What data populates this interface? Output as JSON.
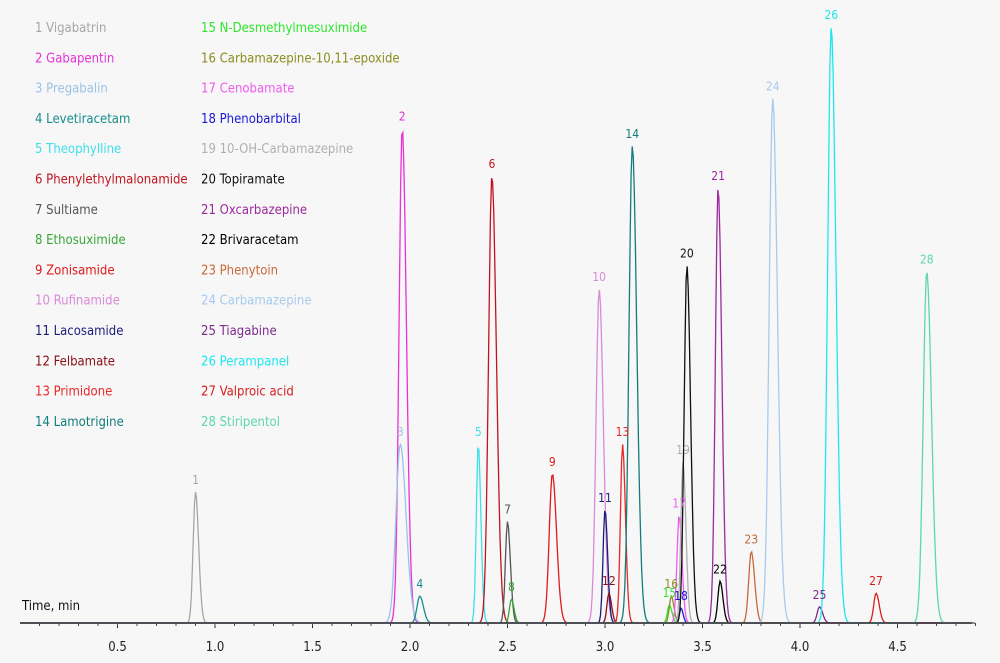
{
  "chart_data": {
    "type": "line",
    "xlabel": "Time, min",
    "xlim": [
      0,
      4.9
    ],
    "x_ticks": [
      "0.5",
      "1.0",
      "1.5",
      "2.0",
      "2.5",
      "3.0",
      "3.5",
      "4.0",
      "4.5"
    ],
    "legend": [
      {
        "num": "1",
        "name": "Vigabatrin",
        "color": "#a6a6a6"
      },
      {
        "num": "2",
        "name": "Gabapentin",
        "color": "#e632d6"
      },
      {
        "num": "3",
        "name": "Pregabalin",
        "color": "#9cc3e6"
      },
      {
        "num": "4",
        "name": "Levetiracetam",
        "color": "#1a8c8c"
      },
      {
        "num": "5",
        "name": "Theophylline",
        "color": "#3de0e8"
      },
      {
        "num": "6",
        "name": "Phenylethylmalonamide",
        "color": "#c0141e"
      },
      {
        "num": "7",
        "name": "Sultiame",
        "color": "#555555"
      },
      {
        "num": "8",
        "name": "Ethosuximide",
        "color": "#3aa63a"
      },
      {
        "num": "9",
        "name": "Zonisamide",
        "color": "#e01919"
      },
      {
        "num": "10",
        "name": "Rufinamide",
        "color": "#d98ad9"
      },
      {
        "num": "11",
        "name": "Lacosamide",
        "color": "#1c1c7a"
      },
      {
        "num": "12",
        "name": "Felbamate",
        "color": "#8a0f14"
      },
      {
        "num": "13",
        "name": "Primidone",
        "color": "#e82828"
      },
      {
        "num": "14",
        "name": "Lamotrigine",
        "color": "#117d7a"
      },
      {
        "num": "15",
        "name": "N-Desmethylmesuximide",
        "color": "#2fe62f"
      },
      {
        "num": "16",
        "name": "Carbamazepine-10,11-epoxide",
        "color": "#8c8c1e"
      },
      {
        "num": "17",
        "name": "Cenobamate",
        "color": "#f05cf0"
      },
      {
        "num": "18",
        "name": "Phenobarbital",
        "color": "#1a1ad6"
      },
      {
        "num": "19",
        "name": "10-OH-Carbamazepine",
        "color": "#b0b0b0"
      },
      {
        "num": "20",
        "name": "Topiramate",
        "color": "#111111"
      },
      {
        "num": "21",
        "name": "Oxcarbazepine",
        "color": "#9c2a9c"
      },
      {
        "num": "22",
        "name": "Brivaracetam",
        "color": "#000000"
      },
      {
        "num": "23",
        "name": "Phenytoin",
        "color": "#c8693a"
      },
      {
        "num": "24",
        "name": "Carbamazepine",
        "color": "#a6cbee"
      },
      {
        "num": "25",
        "name": "Tiagabine",
        "color": "#7d2a8c"
      },
      {
        "num": "26",
        "name": "Perampanel",
        "color": "#1ee6f0"
      },
      {
        "num": "27",
        "name": "Valproic acid",
        "color": "#d61e1e"
      },
      {
        "num": "28",
        "name": "Stiripentol",
        "color": "#5fd6b0"
      }
    ],
    "series": [
      {
        "num": "1",
        "rt": 0.9,
        "height": 0.22,
        "width": 0.012
      },
      {
        "num": "2",
        "rt": 1.96,
        "height": 0.83,
        "width": 0.016
      },
      {
        "num": "3",
        "rt": 1.95,
        "height": 0.3,
        "width": 0.022
      },
      {
        "num": "4",
        "rt": 2.05,
        "height": 0.045,
        "width": 0.014
      },
      {
        "num": "5",
        "rt": 2.35,
        "height": 0.3,
        "width": 0.01
      },
      {
        "num": "6",
        "rt": 2.42,
        "height": 0.75,
        "width": 0.017
      },
      {
        "num": "7",
        "rt": 2.5,
        "height": 0.17,
        "width": 0.011
      },
      {
        "num": "8",
        "rt": 2.52,
        "height": 0.04,
        "width": 0.01
      },
      {
        "num": "9",
        "rt": 2.73,
        "height": 0.25,
        "width": 0.016
      },
      {
        "num": "10",
        "rt": 2.97,
        "height": 0.56,
        "width": 0.016
      },
      {
        "num": "11",
        "rt": 3.0,
        "height": 0.19,
        "width": 0.01
      },
      {
        "num": "12",
        "rt": 3.02,
        "height": 0.05,
        "width": 0.01
      },
      {
        "num": "13",
        "rt": 3.09,
        "height": 0.3,
        "width": 0.011
      },
      {
        "num": "14",
        "rt": 3.14,
        "height": 0.8,
        "width": 0.017
      },
      {
        "num": "15",
        "rt": 3.33,
        "height": 0.03,
        "width": 0.01
      },
      {
        "num": "16",
        "rt": 3.34,
        "height": 0.045,
        "width": 0.01
      },
      {
        "num": "17",
        "rt": 3.38,
        "height": 0.18,
        "width": 0.011
      },
      {
        "num": "18",
        "rt": 3.39,
        "height": 0.025,
        "width": 0.008
      },
      {
        "num": "19",
        "rt": 3.4,
        "height": 0.27,
        "width": 0.011
      },
      {
        "num": "20",
        "rt": 3.42,
        "height": 0.6,
        "width": 0.014
      },
      {
        "num": "21",
        "rt": 3.58,
        "height": 0.73,
        "width": 0.014
      },
      {
        "num": "22",
        "rt": 3.59,
        "height": 0.07,
        "width": 0.011
      },
      {
        "num": "23",
        "rt": 3.75,
        "height": 0.12,
        "width": 0.013
      },
      {
        "num": "24",
        "rt": 3.86,
        "height": 0.88,
        "width": 0.018
      },
      {
        "num": "25",
        "rt": 4.1,
        "height": 0.027,
        "width": 0.012
      },
      {
        "num": "26",
        "rt": 4.16,
        "height": 1.0,
        "width": 0.018
      },
      {
        "num": "27",
        "rt": 4.39,
        "height": 0.05,
        "width": 0.012
      },
      {
        "num": "28",
        "rt": 4.65,
        "height": 0.59,
        "width": 0.018
      }
    ]
  }
}
